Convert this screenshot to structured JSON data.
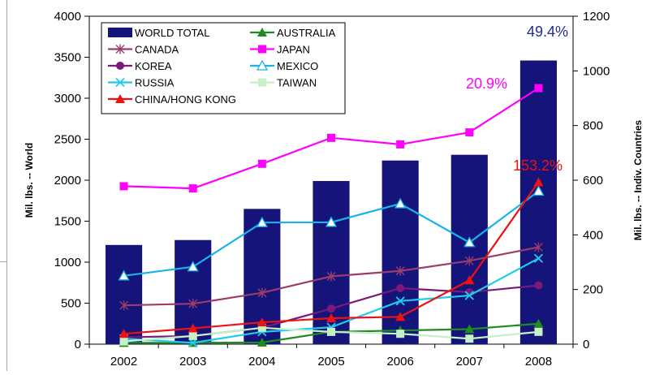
{
  "chart_data": {
    "type": "bar",
    "title": "",
    "xlabel": "",
    "ylabel": "Mil. lbs. -- World",
    "y2label": "Mil. lbs. -- Indiv. Countries",
    "ylim": [
      0,
      4000
    ],
    "y2lim": [
      0,
      1200
    ],
    "yticks": [
      0,
      500,
      1000,
      1500,
      2000,
      2500,
      3000,
      3500,
      4000
    ],
    "y2ticks": [
      0,
      200,
      400,
      600,
      800,
      1000,
      1200
    ],
    "categories": [
      "2002",
      "2003",
      "2004",
      "2005",
      "2006",
      "2007",
      "2008"
    ],
    "grid": false,
    "legend": "top-left",
    "bar_series": {
      "name": "WORLD TOTAL",
      "axis": "left",
      "color": "#14147a",
      "values": [
        1210,
        1270,
        1650,
        1990,
        2240,
        2310,
        3460
      ]
    },
    "line_series": [
      {
        "name": "AUSTRALIA",
        "axis": "right",
        "color": "#1e8c1e",
        "marker": "triangle",
        "values": [
          5,
          5,
          6,
          45,
          50,
          55,
          75
        ]
      },
      {
        "name": "CANADA",
        "axis": "right",
        "color": "#9b3c6a",
        "marker": "star",
        "values": [
          142,
          148,
          188,
          248,
          268,
          305,
          355
        ]
      },
      {
        "name": "JAPAN",
        "axis": "right",
        "color": "#ff00ff",
        "marker": "square",
        "values": [
          578,
          570,
          660,
          755,
          731,
          775,
          937
        ]
      },
      {
        "name": "KOREA",
        "axis": "right",
        "color": "#7b1a7b",
        "marker": "circle",
        "values": [
          25,
          30,
          60,
          130,
          205,
          190,
          215
        ]
      },
      {
        "name": "MEXICO",
        "axis": "right",
        "color": "#17b4ea",
        "marker": "triangle-open",
        "values": [
          250,
          283,
          445,
          446,
          514,
          372,
          560
        ]
      },
      {
        "name": "RUSSIA",
        "axis": "right",
        "color": "#1ecbea",
        "marker": "x",
        "values": [
          20,
          5,
          45,
          62,
          158,
          178,
          314
        ]
      },
      {
        "name": "TAIWAN",
        "axis": "right",
        "color": "#c7f0c7",
        "marker": "square",
        "values": [
          10,
          30,
          60,
          45,
          38,
          20,
          45
        ]
      },
      {
        "name": "CHINA/HONG KONG",
        "axis": "right",
        "color": "#ee1111",
        "marker": "triangle",
        "values": [
          38,
          58,
          80,
          95,
          100,
          234,
          593
        ]
      }
    ],
    "annotations": [
      {
        "text": "49.4%",
        "color": "#1f2c8f"
      },
      {
        "text": "20.9%",
        "color": "#ff00ff"
      },
      {
        "text": "153.2%",
        "color": "#ee1111"
      }
    ]
  }
}
